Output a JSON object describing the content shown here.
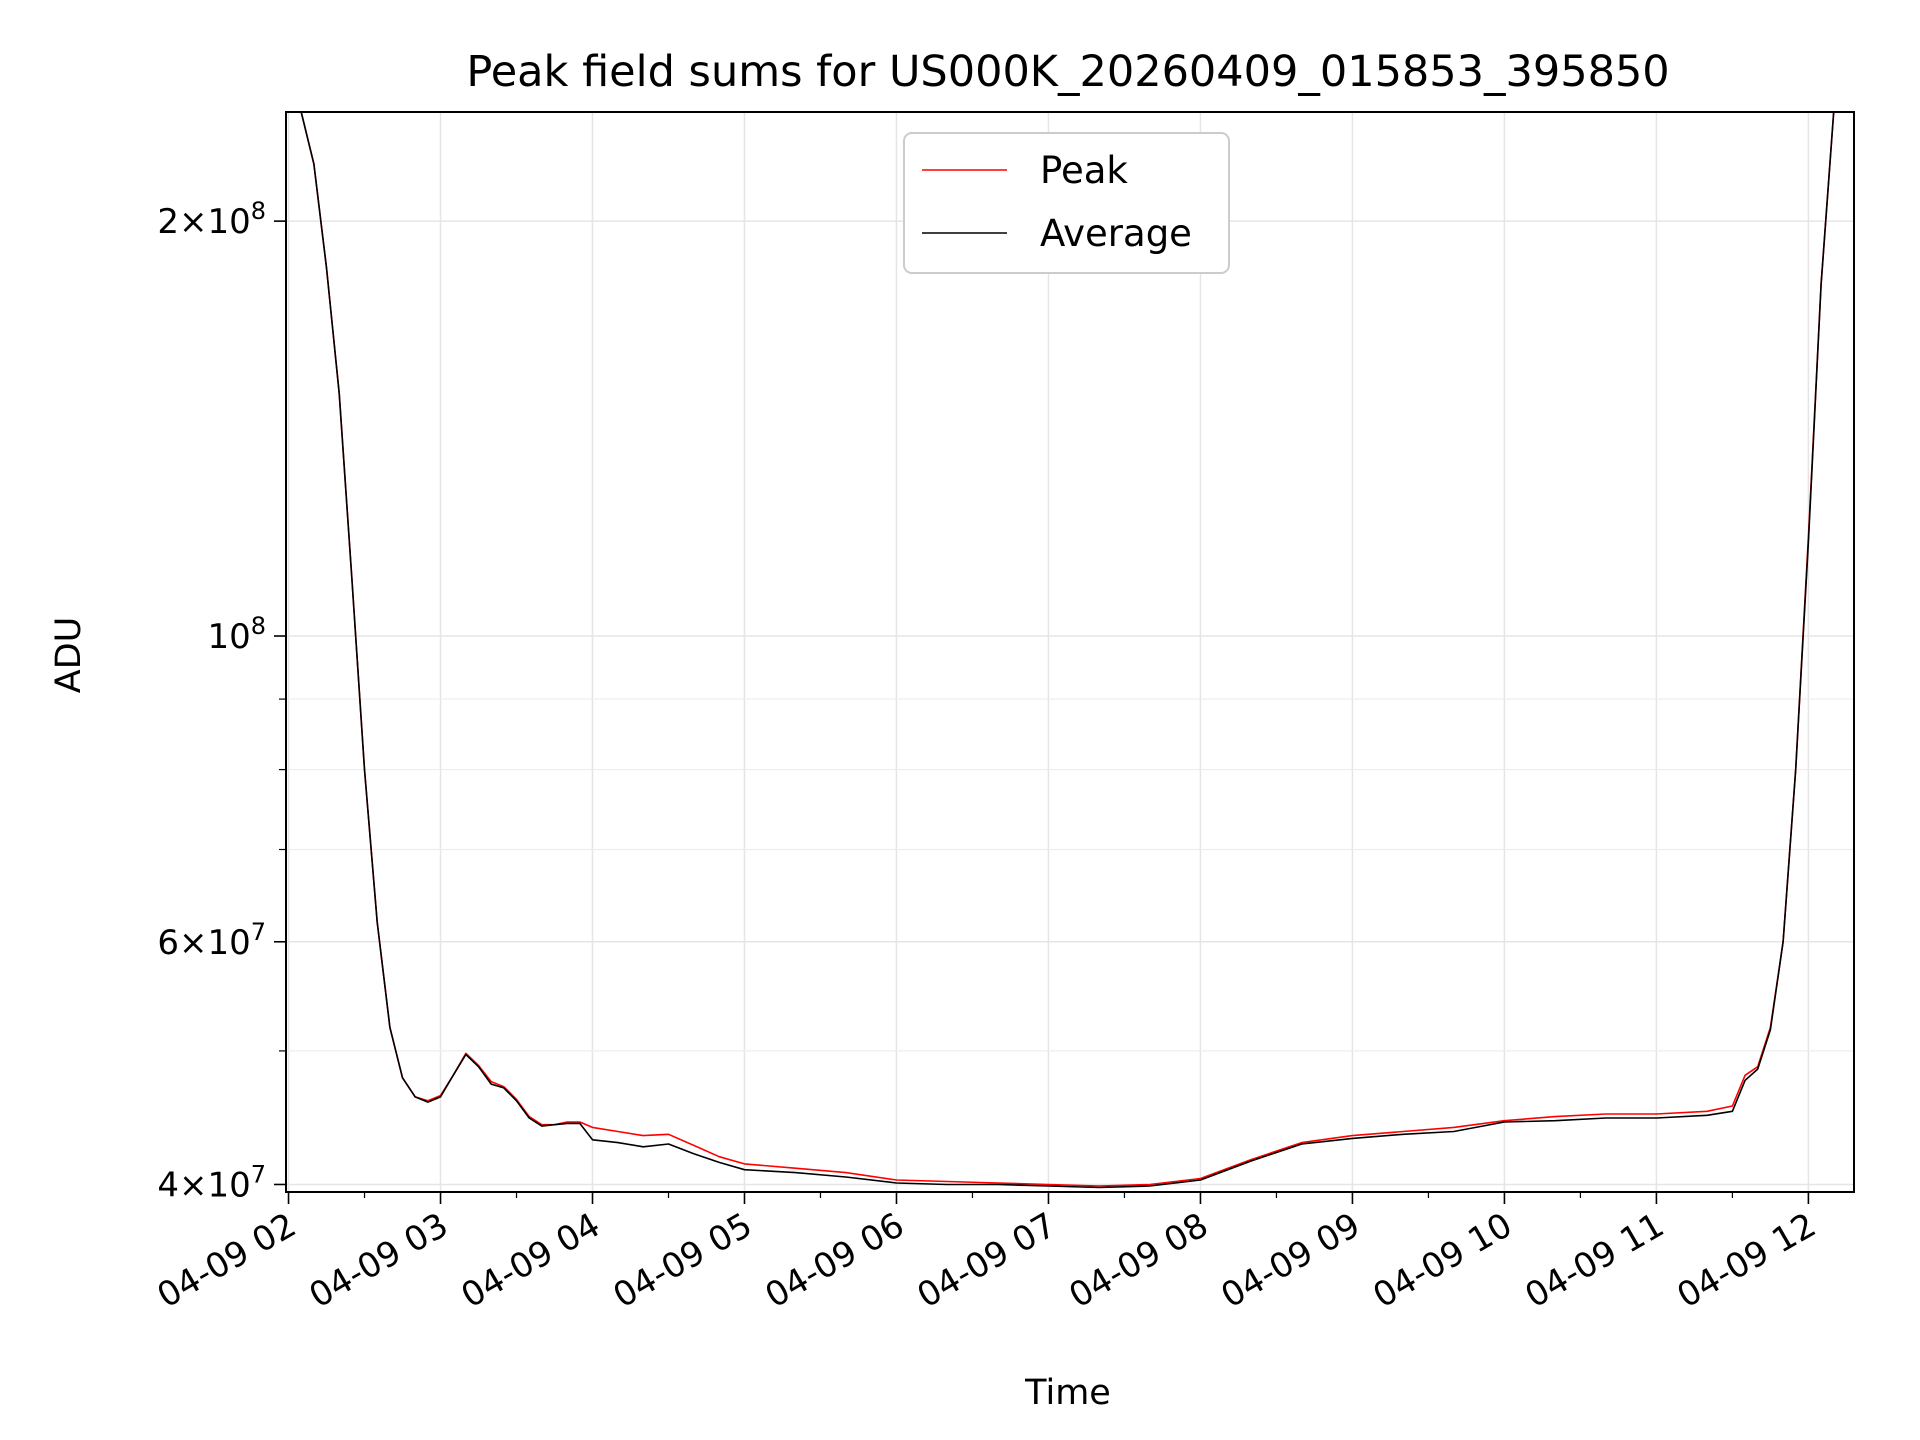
{
  "chart_data": {
    "type": "line",
    "title": "Peak field sums for US000K_20260409_015853_395850",
    "xlabel": "Time",
    "ylabel": "ADU",
    "x_scale": "time",
    "y_scale": "log",
    "xlim": [
      "2026-04-09 01:59",
      "2026-04-09 12:18"
    ],
    "ylim": [
      39500000,
      240000000
    ],
    "x_ticks": [
      "2026-04-09 02:00",
      "2026-04-09 03:00",
      "2026-04-09 04:00",
      "2026-04-09 05:00",
      "2026-04-09 06:00",
      "2026-04-09 07:00",
      "2026-04-09 08:00",
      "2026-04-09 09:00",
      "2026-04-09 10:00",
      "2026-04-09 11:00",
      "2026-04-09 12:00"
    ],
    "x_tick_labels": [
      "04-09 02",
      "04-09 03",
      "04-09 04",
      "04-09 05",
      "04-09 06",
      "04-09 07",
      "04-09 08",
      "04-09 09",
      "04-09 10",
      "04-09 11",
      "04-09 12"
    ],
    "y_ticks": [
      {
        "value": 40000000,
        "base": "4×10",
        "exp": "7"
      },
      {
        "value": 60000000,
        "base": "6×10",
        "exp": "7"
      },
      {
        "value": 100000000,
        "base": "10",
        "exp": "8"
      },
      {
        "value": 200000000,
        "base": "2×10",
        "exp": "8"
      }
    ],
    "y_minor_ticks": [
      50000000,
      70000000,
      80000000,
      90000000
    ],
    "grid": true,
    "legend_position": "top-center",
    "series": [
      {
        "name": "Peak",
        "color": "#ff0000",
        "x": [
          "2026-04-09 02:00",
          "2026-04-09 02:05",
          "2026-04-09 02:10",
          "2026-04-09 02:15",
          "2026-04-09 02:20",
          "2026-04-09 02:25",
          "2026-04-09 02:30",
          "2026-04-09 02:35",
          "2026-04-09 02:40",
          "2026-04-09 02:45",
          "2026-04-09 02:50",
          "2026-04-09 02:55",
          "2026-04-09 03:00",
          "2026-04-09 03:05",
          "2026-04-09 03:10",
          "2026-04-09 03:15",
          "2026-04-09 03:20",
          "2026-04-09 03:25",
          "2026-04-09 03:30",
          "2026-04-09 03:35",
          "2026-04-09 03:40",
          "2026-04-09 03:45",
          "2026-04-09 03:50",
          "2026-04-09 03:55",
          "2026-04-09 04:00",
          "2026-04-09 04:10",
          "2026-04-09 04:20",
          "2026-04-09 04:30",
          "2026-04-09 04:40",
          "2026-04-09 04:50",
          "2026-04-09 05:00",
          "2026-04-09 05:20",
          "2026-04-09 05:40",
          "2026-04-09 06:00",
          "2026-04-09 06:20",
          "2026-04-09 06:40",
          "2026-04-09 07:00",
          "2026-04-09 07:20",
          "2026-04-09 07:40",
          "2026-04-09 08:00",
          "2026-04-09 08:20",
          "2026-04-09 08:40",
          "2026-04-09 09:00",
          "2026-04-09 09:20",
          "2026-04-09 09:40",
          "2026-04-09 10:00",
          "2026-04-09 10:20",
          "2026-04-09 10:40",
          "2026-04-09 11:00",
          "2026-04-09 11:20",
          "2026-04-09 11:30",
          "2026-04-09 11:35",
          "2026-04-09 11:40",
          "2026-04-09 11:45",
          "2026-04-09 11:50",
          "2026-04-09 11:55",
          "2026-04-09 12:00",
          "2026-04-09 12:05",
          "2026-04-09 12:10"
        ],
        "y": [
          240000000,
          240000000,
          220000000,
          185000000,
          150000000,
          110000000,
          80000000,
          62000000,
          52000000,
          47800000,
          46300000,
          46000000,
          46400000,
          48000000,
          49800000,
          48800000,
          47500000,
          47100000,
          46100000,
          44800000,
          44200000,
          44200000,
          44400000,
          44400000,
          44000000,
          43700000,
          43400000,
          43500000,
          42700000,
          41900000,
          41400000,
          41100000,
          40800000,
          40300000,
          40200000,
          40100000,
          40000000,
          39900000,
          40000000,
          40400000,
          41700000,
          42900000,
          43400000,
          43700000,
          44000000,
          44500000,
          44800000,
          45000000,
          45000000,
          45200000,
          45600000,
          48000000,
          48700000,
          52000000,
          60000000,
          80000000,
          118000000,
          180000000,
          240000000
        ]
      },
      {
        "name": "Average",
        "color": "#000000",
        "x": [
          "2026-04-09 02:00",
          "2026-04-09 02:05",
          "2026-04-09 02:10",
          "2026-04-09 02:15",
          "2026-04-09 02:20",
          "2026-04-09 02:25",
          "2026-04-09 02:30",
          "2026-04-09 02:35",
          "2026-04-09 02:40",
          "2026-04-09 02:45",
          "2026-04-09 02:50",
          "2026-04-09 02:55",
          "2026-04-09 03:00",
          "2026-04-09 03:05",
          "2026-04-09 03:10",
          "2026-04-09 03:15",
          "2026-04-09 03:20",
          "2026-04-09 03:25",
          "2026-04-09 03:30",
          "2026-04-09 03:35",
          "2026-04-09 03:40",
          "2026-04-09 03:45",
          "2026-04-09 03:50",
          "2026-04-09 03:55",
          "2026-04-09 04:00",
          "2026-04-09 04:10",
          "2026-04-09 04:20",
          "2026-04-09 04:30",
          "2026-04-09 04:40",
          "2026-04-09 04:50",
          "2026-04-09 05:00",
          "2026-04-09 05:20",
          "2026-04-09 05:40",
          "2026-04-09 06:00",
          "2026-04-09 06:20",
          "2026-04-09 06:40",
          "2026-04-09 07:00",
          "2026-04-09 07:20",
          "2026-04-09 07:40",
          "2026-04-09 08:00",
          "2026-04-09 08:20",
          "2026-04-09 08:40",
          "2026-04-09 09:00",
          "2026-04-09 09:20",
          "2026-04-09 09:40",
          "2026-04-09 10:00",
          "2026-04-09 10:20",
          "2026-04-09 10:40",
          "2026-04-09 11:00",
          "2026-04-09 11:20",
          "2026-04-09 11:30",
          "2026-04-09 11:35",
          "2026-04-09 11:40",
          "2026-04-09 11:45",
          "2026-04-09 11:50",
          "2026-04-09 11:55",
          "2026-04-09 12:00",
          "2026-04-09 12:05",
          "2026-04-09 12:10"
        ],
        "y": [
          240000000,
          240000000,
          220000000,
          185000000,
          150000000,
          110000000,
          80000000,
          62000000,
          52000000,
          47800000,
          46300000,
          45900000,
          46300000,
          48000000,
          49700000,
          48700000,
          47300000,
          47000000,
          46000000,
          44700000,
          44100000,
          44200000,
          44300000,
          44300000,
          43100000,
          42900000,
          42600000,
          42800000,
          42100000,
          41500000,
          41000000,
          40800000,
          40500000,
          40100000,
          40000000,
          40000000,
          39900000,
          39800000,
          39900000,
          40300000,
          41600000,
          42800000,
          43200000,
          43500000,
          43700000,
          44400000,
          44500000,
          44700000,
          44700000,
          44900000,
          45200000,
          47600000,
          48500000,
          51800000,
          60000000,
          80000000,
          117000000,
          180000000,
          240000000
        ]
      }
    ]
  }
}
